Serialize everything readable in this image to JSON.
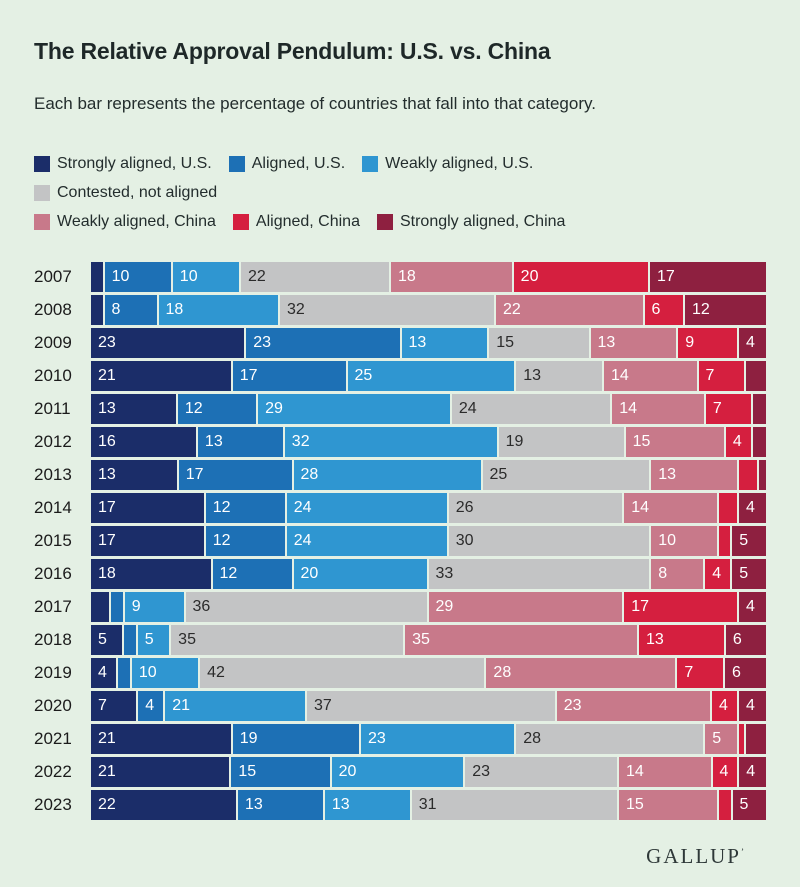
{
  "header": {
    "title": "The Relative Approval Pendulum: U.S. vs. China",
    "subtitle": "Each bar represents the percentage of countries that fall into that category."
  },
  "footer": {
    "brand": "GALLUP"
  },
  "chart_data": {
    "type": "bar",
    "stacked": true,
    "orientation": "horizontal",
    "unit": "percent of countries",
    "label_min_value": 4,
    "series_names": [
      "Strongly aligned, U.S.",
      "Aligned, U.S.",
      "Weakly aligned, U.S.",
      "Contested, not aligned",
      "Weakly aligned, China",
      "Aligned, China",
      "Strongly aligned, China"
    ],
    "series_colors": [
      "#1b2d69",
      "#1d70b5",
      "#2f96d1",
      "#c3c4c5",
      "#c8798a",
      "#d51f3f",
      "#8e2040"
    ],
    "contested_index": 3,
    "legend_rows": [
      [
        0,
        1,
        2
      ],
      [
        3
      ],
      [
        4,
        5,
        6
      ]
    ],
    "rows": [
      {
        "year": "2007",
        "values": [
          2,
          10,
          10,
          22,
          18,
          20,
          17
        ]
      },
      {
        "year": "2008",
        "values": [
          2,
          8,
          18,
          32,
          22,
          6,
          12
        ]
      },
      {
        "year": "2009",
        "values": [
          23,
          23,
          13,
          15,
          13,
          9,
          4
        ]
      },
      {
        "year": "2010",
        "values": [
          21,
          17,
          25,
          13,
          14,
          7,
          3
        ]
      },
      {
        "year": "2011",
        "values": [
          13,
          12,
          29,
          24,
          14,
          7,
          2
        ]
      },
      {
        "year": "2012",
        "values": [
          16,
          13,
          32,
          19,
          15,
          4,
          2
        ]
      },
      {
        "year": "2013",
        "values": [
          13,
          17,
          28,
          25,
          13,
          3,
          1
        ]
      },
      {
        "year": "2014",
        "values": [
          17,
          12,
          24,
          26,
          14,
          3,
          4
        ]
      },
      {
        "year": "2015",
        "values": [
          17,
          12,
          24,
          30,
          10,
          2,
          5
        ]
      },
      {
        "year": "2016",
        "values": [
          18,
          12,
          20,
          33,
          8,
          4,
          5
        ]
      },
      {
        "year": "2017",
        "values": [
          3,
          2,
          9,
          36,
          29,
          17,
          4
        ]
      },
      {
        "year": "2018",
        "values": [
          5,
          2,
          5,
          35,
          35,
          13,
          6
        ]
      },
      {
        "year": "2019",
        "values": [
          4,
          2,
          10,
          42,
          28,
          7,
          6
        ]
      },
      {
        "year": "2020",
        "values": [
          7,
          4,
          21,
          37,
          23,
          4,
          4
        ]
      },
      {
        "year": "2021",
        "values": [
          21,
          19,
          23,
          28,
          5,
          1,
          3
        ]
      },
      {
        "year": "2022",
        "values": [
          21,
          15,
          20,
          23,
          14,
          4,
          4
        ]
      },
      {
        "year": "2023",
        "values": [
          22,
          13,
          13,
          31,
          15,
          2,
          5
        ]
      }
    ]
  },
  "colors": {
    "background": "#e4f0e4",
    "title_text": "#1e2828",
    "gray_segment_label": "#2b2b2b",
    "segment_label": "#ffffff"
  }
}
